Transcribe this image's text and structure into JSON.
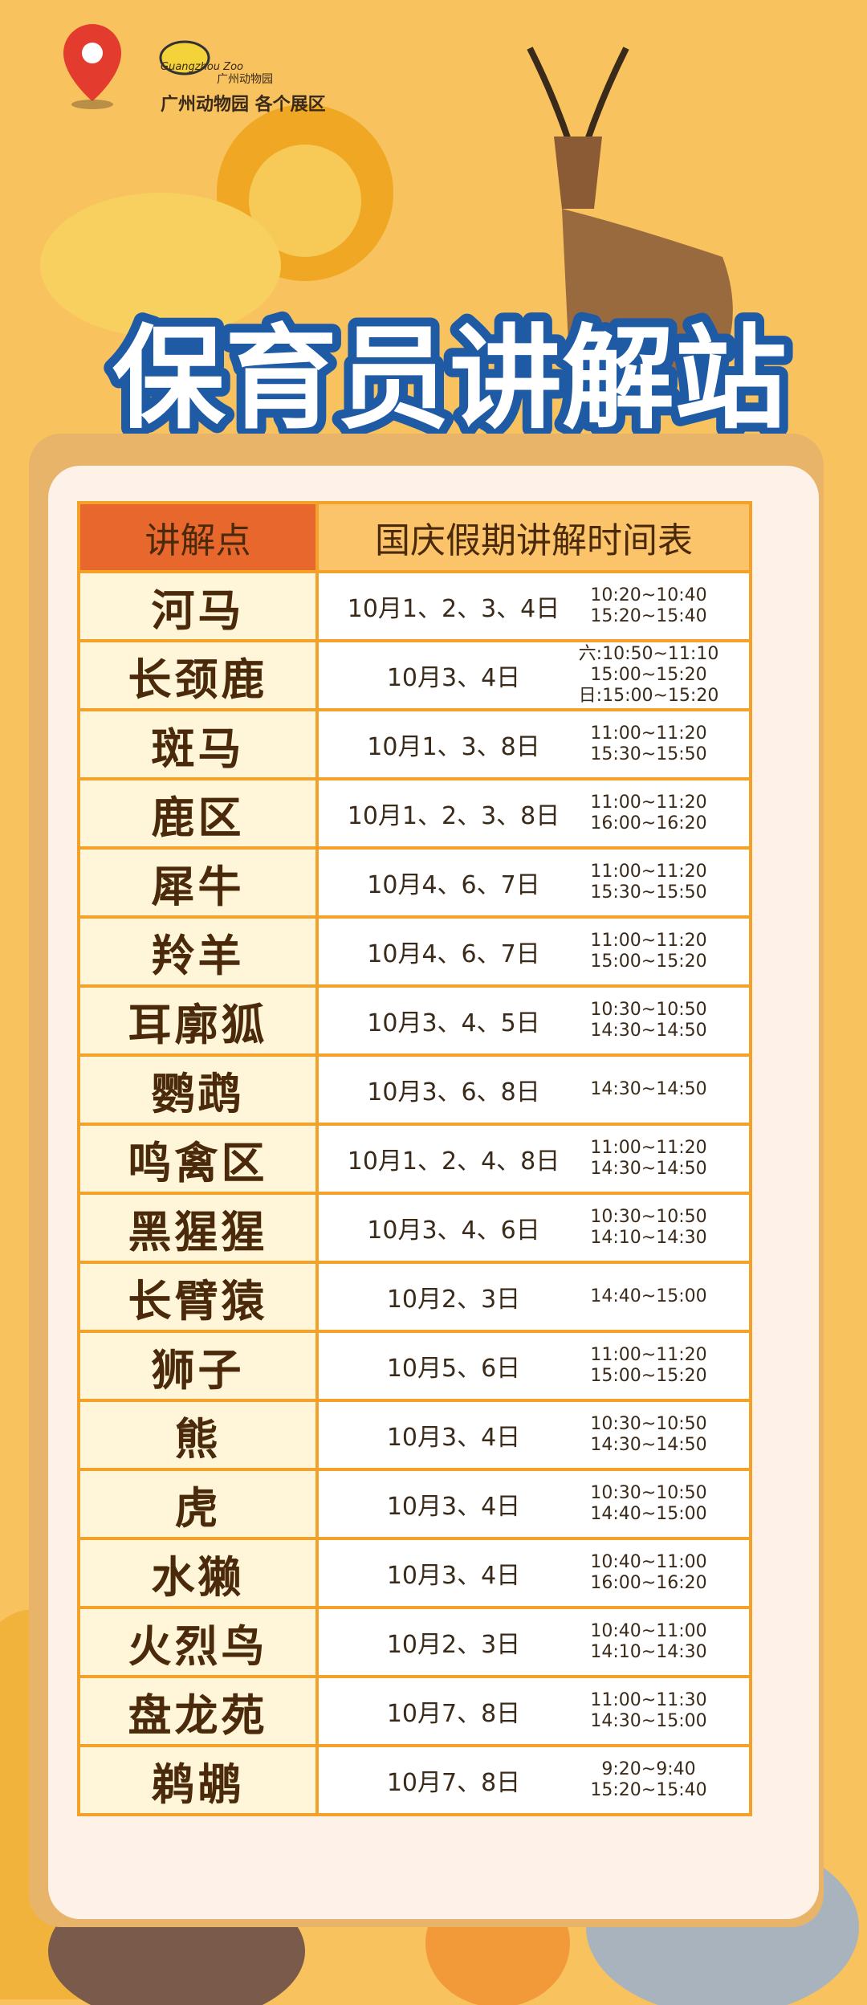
{
  "header": {
    "logo_en": "Guangzhou Zoo",
    "logo_cn": "广州动物园",
    "location": "广州动物园 各个展区"
  },
  "title": "保育员讲解站",
  "table": {
    "columns": [
      "讲解点",
      "国庆假期讲解时间表"
    ],
    "rows": [
      {
        "name": "河马",
        "dates": "10月1、2、3、4日",
        "times": [
          "10:20~10:40",
          "15:20~15:40"
        ]
      },
      {
        "name": "长颈鹿",
        "dates": "10月3、4日",
        "times": [
          "六:10:50~11:10",
          "15:00~15:20",
          "日:15:00~15:20"
        ]
      },
      {
        "name": "斑马",
        "dates": "10月1、3、8日",
        "times": [
          "11:00~11:20",
          "15:30~15:50"
        ]
      },
      {
        "name": "鹿区",
        "dates": "10月1、2、3、8日",
        "times": [
          "11:00~11:20",
          "16:00~16:20"
        ]
      },
      {
        "name": "犀牛",
        "dates": "10月4、6、7日",
        "times": [
          "11:00~11:20",
          "15:30~15:50"
        ]
      },
      {
        "name": "羚羊",
        "dates": "10月4、6、7日",
        "times": [
          "11:00~11:20",
          "15:00~15:20"
        ]
      },
      {
        "name": "耳廓狐",
        "dates": "10月3、4、5日",
        "times": [
          "10:30~10:50",
          "14:30~14:50"
        ]
      },
      {
        "name": "鹦鹉",
        "dates": "10月3、6、8日",
        "times": [
          "14:30~14:50"
        ]
      },
      {
        "name": "鸣禽区",
        "dates": "10月1、2、4、8日",
        "times": [
          "11:00~11:20",
          "14:30~14:50"
        ]
      },
      {
        "name": "黑猩猩",
        "dates": "10月3、4、6日",
        "times": [
          "10:30~10:50",
          "14:10~14:30"
        ]
      },
      {
        "name": "长臂猿",
        "dates": "10月2、3日",
        "times": [
          "14:40~15:00"
        ]
      },
      {
        "name": "狮子",
        "dates": "10月5、6日",
        "times": [
          "11:00~11:20",
          "15:00~15:20"
        ]
      },
      {
        "name": "熊",
        "dates": "10月3、4日",
        "times": [
          "10:30~10:50",
          "14:30~14:50"
        ]
      },
      {
        "name": "虎",
        "dates": "10月3、4日",
        "times": [
          "10:30~10:50",
          "14:40~15:00"
        ]
      },
      {
        "name": "水獭",
        "dates": "10月3、4日",
        "times": [
          "10:40~11:00",
          "16:00~16:20"
        ]
      },
      {
        "name": "火烈鸟",
        "dates": "10月2、3日",
        "times": [
          "10:40~11:00",
          "14:10~14:30"
        ]
      },
      {
        "name": "盘龙苑",
        "dates": "10月7、8日",
        "times": [
          "11:00~11:30",
          "14:30~15:00"
        ]
      },
      {
        "name": "鹈鹕",
        "dates": "10月7、8日",
        "times": [
          "9:20~9:40",
          "15:20~15:40"
        ]
      }
    ]
  }
}
